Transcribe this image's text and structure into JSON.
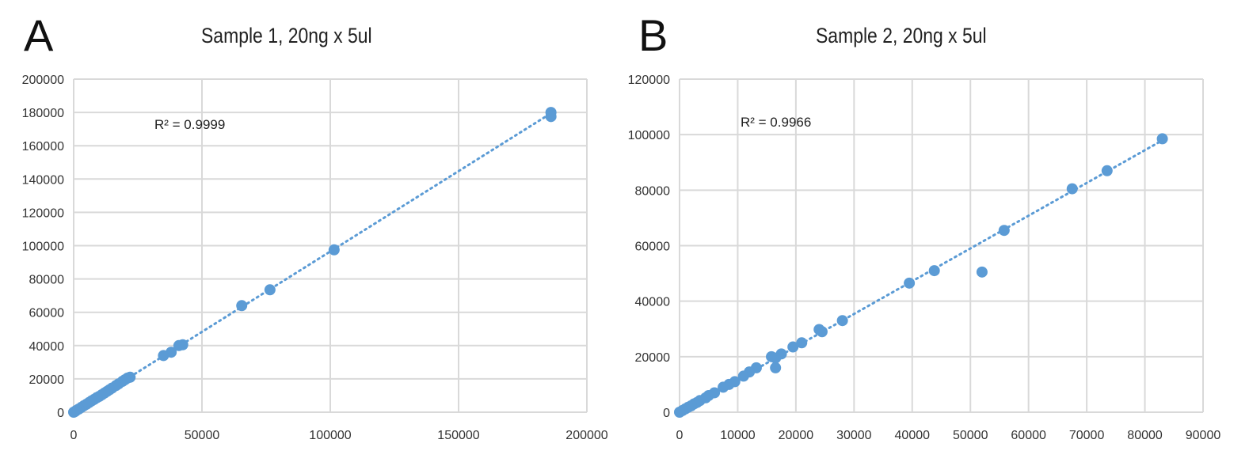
{
  "chart_data": [
    {
      "type": "scatter",
      "panel": "A",
      "title": "Sample 1, 20ng x 5ul",
      "xlabel": "",
      "ylabel": "",
      "xlim": [
        0,
        200000
      ],
      "ylim": [
        0,
        200000
      ],
      "xticks": [
        "0",
        "50000",
        "100000",
        "150000",
        "200000"
      ],
      "yticks": [
        "0",
        "20000",
        "40000",
        "60000",
        "80000",
        "100000",
        "120000",
        "140000",
        "160000",
        "180000",
        "200000"
      ],
      "grid": true,
      "color": "#5b9bd5",
      "trendline": {
        "type": "linear",
        "slope": 0.965,
        "intercept": 0,
        "style": "dotted",
        "r2_label": "R² = 0.9999"
      },
      "points": [
        [
          186000,
          180000
        ],
        [
          186000,
          177500
        ],
        [
          101500,
          97500
        ],
        [
          76500,
          73500
        ],
        [
          65500,
          64000
        ],
        [
          42500,
          40500
        ],
        [
          41000,
          40000
        ],
        [
          38000,
          36000
        ],
        [
          35000,
          34000
        ],
        [
          22000,
          21000
        ],
        [
          21000,
          20500
        ],
        [
          20000,
          19500
        ],
        [
          19000,
          18500
        ],
        [
          17500,
          17000
        ],
        [
          16500,
          16000
        ],
        [
          15000,
          14500
        ],
        [
          14000,
          13500
        ],
        [
          13000,
          12500
        ],
        [
          12000,
          11500
        ],
        [
          11000,
          10500
        ],
        [
          10000,
          9500
        ],
        [
          9000,
          8700
        ],
        [
          8000,
          7700
        ],
        [
          7000,
          6800
        ],
        [
          6000,
          5800
        ],
        [
          5000,
          4800
        ],
        [
          4000,
          3900
        ],
        [
          3000,
          2900
        ],
        [
          2000,
          1900
        ],
        [
          1000,
          1000
        ],
        [
          500,
          400
        ],
        [
          0,
          0
        ]
      ]
    },
    {
      "type": "scatter",
      "panel": "B",
      "title": "Sample 2, 20ng x 5ul",
      "xlabel": "",
      "ylabel": "",
      "xlim": [
        0,
        90000
      ],
      "ylim": [
        0,
        120000
      ],
      "xticks": [
        "0",
        "10000",
        "20000",
        "30000",
        "40000",
        "50000",
        "60000",
        "70000",
        "80000",
        "90000"
      ],
      "yticks": [
        "0",
        "20000",
        "40000",
        "60000",
        "80000",
        "100000",
        "120000"
      ],
      "grid": true,
      "color": "#5b9bd5",
      "trendline": {
        "type": "linear",
        "slope": 1.18,
        "intercept": 0,
        "style": "dotted",
        "r2_label": "R² = 0.9966"
      },
      "points": [
        [
          83000,
          98500
        ],
        [
          73500,
          87000
        ],
        [
          67500,
          80500
        ],
        [
          55800,
          65500
        ],
        [
          52000,
          50500
        ],
        [
          43800,
          51000
        ],
        [
          39500,
          46500
        ],
        [
          28000,
          33000
        ],
        [
          24500,
          29000
        ],
        [
          24000,
          29800
        ],
        [
          21000,
          25000
        ],
        [
          19500,
          23500
        ],
        [
          17500,
          21000
        ],
        [
          16500,
          16000
        ],
        [
          16500,
          19500
        ],
        [
          15800,
          20000
        ],
        [
          13200,
          16000
        ],
        [
          12000,
          14500
        ],
        [
          11000,
          13000
        ],
        [
          9500,
          11000
        ],
        [
          8500,
          10000
        ],
        [
          7500,
          9000
        ],
        [
          6000,
          7000
        ],
        [
          5000,
          6000
        ],
        [
          4500,
          5200
        ],
        [
          3500,
          4200
        ],
        [
          3000,
          3500
        ],
        [
          2500,
          3000
        ],
        [
          2000,
          2300
        ],
        [
          1500,
          1800
        ],
        [
          1000,
          1200
        ],
        [
          500,
          600
        ],
        [
          0,
          0
        ]
      ]
    }
  ],
  "panels": {
    "A": "A",
    "B": "B"
  }
}
